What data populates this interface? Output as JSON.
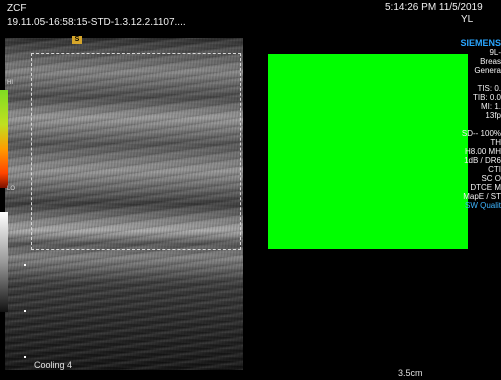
{
  "header": {
    "operator": "ZCF",
    "study_id": "19.11.05-16:58:15-STD-1.3.12.2.1107....",
    "datetime": "5:14:26 PM 11/5/2019",
    "initials": "YL"
  },
  "image": {
    "orientation_marker": "S",
    "colorbar_top": "HI",
    "colorbar_bottom": "LO",
    "status_text": "Cooling 4",
    "depth": "3.5cm"
  },
  "params": {
    "brand": "SIEMENS",
    "lines": [
      "9L-",
      "Breas",
      "Genera",
      "",
      "TIS: 0.",
      "TIB: 0.0",
      "MI: 1.",
      "13fp",
      "",
      "SD-- 100%",
      "TH",
      "H8.00 MH",
      "1dB / DR6",
      "CTI",
      "SC O",
      "DTCE M",
      "MapE / ST"
    ],
    "accent_line": "SW Qualit"
  },
  "colors": {
    "panel": "#00ff00",
    "brand": "#2aa6ff",
    "marker": "#d6a62a"
  }
}
